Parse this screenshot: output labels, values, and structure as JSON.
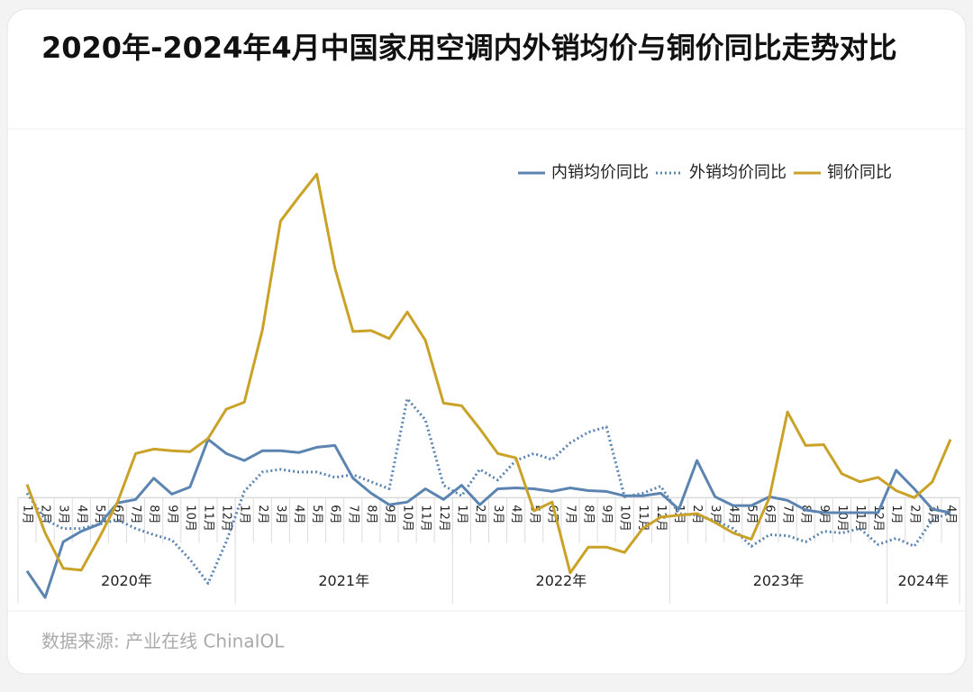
{
  "chart_data": {
    "type": "line",
    "title": "2020年-2024年4月中国家用空调内外销均价与铜价同比走势对比",
    "source": "数据来源: 产业在线 ChinaIOL",
    "categories": [
      "1月",
      "2月",
      "3月",
      "4月",
      "5月",
      "6月",
      "7月",
      "8月",
      "9月",
      "10月",
      "11月",
      "12月",
      "1月",
      "2月",
      "3月",
      "4月",
      "5月",
      "6月",
      "7月",
      "8月",
      "9月",
      "10月",
      "11月",
      "12月",
      "1月",
      "2月",
      "3月",
      "4月",
      "5月",
      "6月",
      "7月",
      "8月",
      "9月",
      "10月",
      "11月",
      "12月",
      "1月",
      "2月",
      "3月",
      "4月",
      "5月",
      "6月",
      "7月",
      "8月",
      "9月",
      "10月",
      "11月",
      "12月",
      "1月",
      "2月",
      "3月",
      "4月"
    ],
    "category_groups": [
      {
        "label": "2020年",
        "span": 12
      },
      {
        "label": "2021年",
        "span": 12
      },
      {
        "label": "2022年",
        "span": 12
      },
      {
        "label": "2023年",
        "span": 12
      },
      {
        "label": "2024年",
        "span": 4
      }
    ],
    "ylim": [
      -30,
      100
    ],
    "legend": "top-right",
    "series": [
      {
        "name": "内销均价同比",
        "color": "#5b84b1",
        "style": "solid",
        "values": [
          -20.75,
          -28.25,
          -12.5,
          -9.5,
          -7.5,
          -1.5,
          -0.5,
          5.5,
          1,
          3,
          16.5,
          12.5,
          10.5,
          13.25,
          13.25,
          12.75,
          14.25,
          14.75,
          5.5,
          1.25,
          -2,
          -1.25,
          2.5,
          -0.5,
          3.5,
          -2,
          2.5,
          2.75,
          2.5,
          1.75,
          2.75,
          2,
          1.75,
          0.5,
          0.5,
          1.25,
          -3.25,
          10.5,
          0.25,
          -2.25,
          -2.25,
          0.25,
          -0.75,
          -3.5,
          -4.25,
          -4.25,
          -4.25,
          -4.25,
          7.75,
          2.5,
          -3.25,
          -4.25
        ]
      },
      {
        "name": "外销均价同比",
        "color": "#5b84b1",
        "style": "dotted",
        "values": [
          1.25,
          -6.25,
          -8.75,
          -8.75,
          -7.5,
          -6.25,
          -8.75,
          -10.5,
          -12,
          -17.5,
          -24.25,
          -12.5,
          1.75,
          7.25,
          8,
          7.25,
          7.25,
          5.75,
          6.5,
          4.5,
          2.5,
          28,
          22,
          3.5,
          0.5,
          8,
          5,
          10.5,
          12.5,
          10.75,
          15.5,
          18.5,
          20,
          0.25,
          1.25,
          3.25,
          -4.5,
          -5,
          -6.5,
          -8.75,
          -13.75,
          -10.5,
          -10.75,
          -12.5,
          -9.5,
          -10,
          -8.75,
          -13.25,
          -11.5,
          -13.75,
          -6.25,
          -4.25
        ]
      },
      {
        "name": "铜价同比",
        "color": "#c9a227",
        "style": "solid",
        "values": [
          3.75,
          -10,
          -20,
          -20.5,
          -11.25,
          -1.25,
          12.5,
          13.75,
          13.25,
          13,
          16.75,
          25,
          27,
          47.5,
          78.25,
          85,
          91.5,
          65,
          47,
          47.25,
          45,
          52.5,
          44.5,
          26.75,
          26,
          19.5,
          12.5,
          11.25,
          -3.75,
          -1.25,
          -21.25,
          -14,
          -14,
          -15.5,
          -8.75,
          -5.5,
          -5,
          -4.5,
          -7,
          -10,
          -11.75,
          0,
          24.25,
          14.75,
          15,
          6.75,
          4.5,
          5.75,
          2,
          0,
          4.5,
          16.5
        ]
      }
    ]
  }
}
